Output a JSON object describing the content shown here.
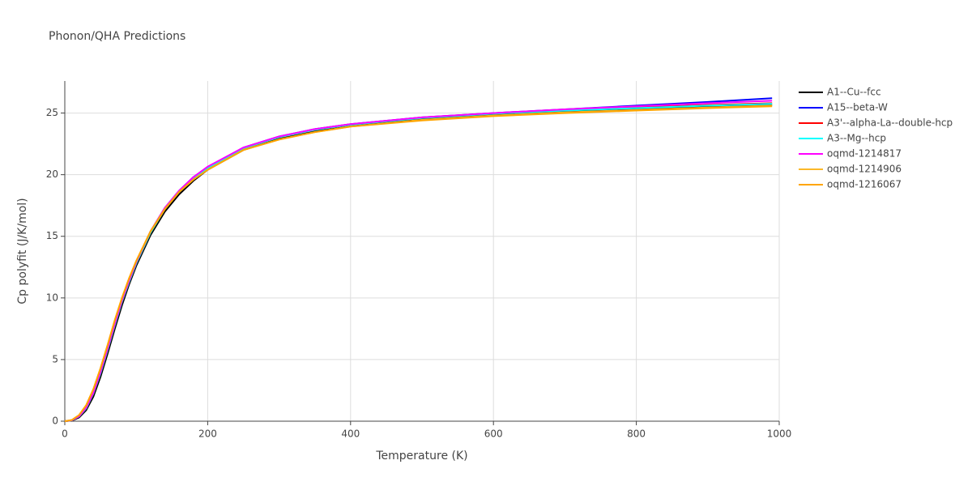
{
  "chart_data": {
    "type": "line",
    "title": "Phonon/QHA Predictions",
    "x_label": "Temperature (K)",
    "y_label": "Cp polyfit (J/K/mol)",
    "x": [
      0,
      10,
      20,
      30,
      40,
      50,
      60,
      70,
      80,
      90,
      100,
      120,
      140,
      160,
      180,
      200,
      250,
      300,
      350,
      400,
      500,
      600,
      700,
      800,
      900,
      990
    ],
    "series": [
      {
        "name": "A1--Cu--fcc",
        "color": "#000000",
        "values": [
          0,
          0.05,
          0.3,
          0.9,
          2.0,
          3.6,
          5.5,
          7.5,
          9.4,
          11.1,
          12.6,
          15.1,
          17.0,
          18.4,
          19.5,
          20.4,
          22.0,
          22.9,
          23.5,
          23.95,
          24.5,
          24.85,
          25.1,
          25.3,
          25.5,
          25.65
        ]
      },
      {
        "name": "A15--beta-W",
        "color": "#0000ff",
        "values": [
          0,
          0.08,
          0.4,
          1.1,
          2.3,
          4.0,
          5.9,
          7.9,
          9.8,
          11.4,
          12.9,
          15.4,
          17.3,
          18.7,
          19.8,
          20.6,
          22.2,
          23.1,
          23.7,
          24.1,
          24.65,
          25.0,
          25.3,
          25.6,
          25.9,
          26.2
        ]
      },
      {
        "name": "A3'--alpha-La--double-hcp",
        "color": "#ff0000",
        "values": [
          0,
          0.07,
          0.38,
          1.05,
          2.25,
          3.9,
          5.8,
          7.8,
          9.7,
          11.3,
          12.8,
          15.3,
          17.2,
          18.6,
          19.7,
          20.55,
          22.15,
          23.05,
          23.65,
          24.05,
          24.6,
          24.95,
          25.2,
          25.45,
          25.65,
          25.8
        ]
      },
      {
        "name": "A3--Mg--hcp",
        "color": "#00ffff",
        "values": [
          0,
          0.07,
          0.38,
          1.05,
          2.25,
          3.9,
          5.8,
          7.8,
          9.7,
          11.3,
          12.8,
          15.3,
          17.2,
          18.6,
          19.7,
          20.55,
          22.15,
          23.05,
          23.65,
          24.05,
          24.6,
          24.95,
          25.2,
          25.4,
          25.6,
          25.75
        ]
      },
      {
        "name": "oqmd-1214817",
        "color": "#ff00ff",
        "values": [
          0,
          0.08,
          0.4,
          1.1,
          2.3,
          4.0,
          5.9,
          7.9,
          9.8,
          11.4,
          12.9,
          15.4,
          17.3,
          18.7,
          19.8,
          20.65,
          22.2,
          23.1,
          23.7,
          24.1,
          24.65,
          25.0,
          25.3,
          25.55,
          25.8,
          26.0
        ]
      },
      {
        "name": "oqmd-1214906",
        "color": "#fbb829",
        "values": [
          0,
          0.1,
          0.5,
          1.3,
          2.6,
          4.3,
          6.2,
          8.2,
          10.0,
          11.6,
          13.0,
          15.4,
          17.2,
          18.6,
          19.6,
          20.4,
          22.0,
          22.85,
          23.45,
          23.9,
          24.45,
          24.8,
          25.05,
          25.25,
          25.45,
          25.6
        ]
      },
      {
        "name": "oqmd-1216067",
        "color": "#ffa500",
        "values": [
          0,
          0.1,
          0.5,
          1.3,
          2.6,
          4.3,
          6.2,
          8.2,
          10.0,
          11.6,
          13.0,
          15.4,
          17.2,
          18.6,
          19.6,
          20.4,
          22.0,
          22.85,
          23.45,
          23.9,
          24.4,
          24.75,
          25.0,
          25.2,
          25.4,
          25.55
        ]
      }
    ],
    "xlim": [
      0,
      1000
    ],
    "xticks": [
      0,
      200,
      400,
      600,
      800,
      1000
    ],
    "ylim": [
      0,
      27.6
    ],
    "yticks": [
      0,
      5,
      10,
      15,
      20,
      25
    ],
    "grid": true
  }
}
